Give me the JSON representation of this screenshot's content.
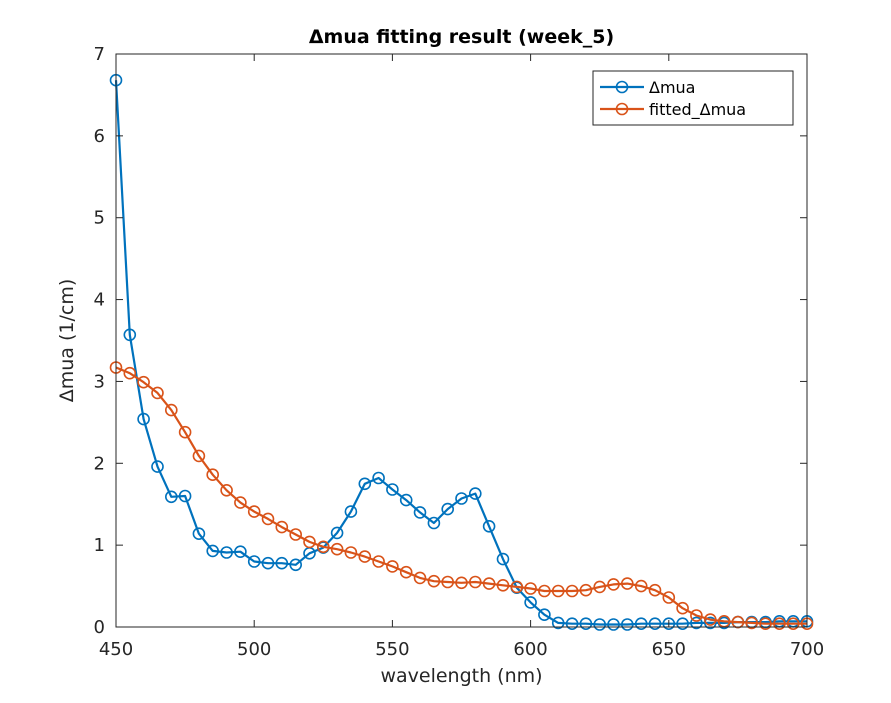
{
  "chart_data": {
    "type": "line",
    "title": "Δmua fitting result (week_5)",
    "xlabel": "wavelength (nm)",
    "ylabel": "Δmua (1/cm)",
    "xlim": [
      450,
      700
    ],
    "ylim": [
      0,
      7
    ],
    "xticks": [
      "450",
      "500",
      "550",
      "600",
      "650",
      "700"
    ],
    "yticks": [
      "0",
      "1",
      "2",
      "3",
      "4",
      "5",
      "6",
      "7"
    ],
    "grid": false,
    "legend_position": "top-right",
    "x": [
      450,
      455,
      460,
      465,
      470,
      475,
      480,
      485,
      490,
      495,
      500,
      505,
      510,
      515,
      520,
      525,
      530,
      535,
      540,
      545,
      550,
      555,
      560,
      565,
      570,
      575,
      580,
      585,
      590,
      595,
      600,
      605,
      610,
      615,
      620,
      625,
      630,
      635,
      640,
      645,
      650,
      655,
      660,
      665,
      670,
      675,
      680,
      685,
      690,
      695,
      700
    ],
    "series": [
      {
        "name": "Δmua",
        "color": "#0072BD",
        "values": [
          6.68,
          3.57,
          2.54,
          1.96,
          1.59,
          1.6,
          1.14,
          0.93,
          0.91,
          0.92,
          0.8,
          0.78,
          0.78,
          0.76,
          0.9,
          0.97,
          1.15,
          1.41,
          1.75,
          1.82,
          1.68,
          1.55,
          1.4,
          1.27,
          1.44,
          1.57,
          1.63,
          1.23,
          0.83,
          0.48,
          0.3,
          0.15,
          0.05,
          0.04,
          0.04,
          0.03,
          0.03,
          0.03,
          0.04,
          0.04,
          0.04,
          0.04,
          0.05,
          0.05,
          0.05,
          0.06,
          0.06,
          0.06,
          0.07,
          0.07,
          0.07
        ]
      },
      {
        "name": "fitted_Δmua",
        "color": "#D95319",
        "values": [
          3.17,
          3.1,
          2.99,
          2.86,
          2.65,
          2.38,
          2.09,
          1.86,
          1.67,
          1.52,
          1.41,
          1.32,
          1.22,
          1.13,
          1.04,
          0.98,
          0.95,
          0.91,
          0.86,
          0.8,
          0.74,
          0.67,
          0.6,
          0.56,
          0.55,
          0.54,
          0.55,
          0.53,
          0.51,
          0.49,
          0.47,
          0.44,
          0.44,
          0.44,
          0.45,
          0.49,
          0.52,
          0.53,
          0.5,
          0.45,
          0.36,
          0.23,
          0.14,
          0.09,
          0.07,
          0.06,
          0.05,
          0.04,
          0.04,
          0.04,
          0.04
        ]
      }
    ]
  }
}
